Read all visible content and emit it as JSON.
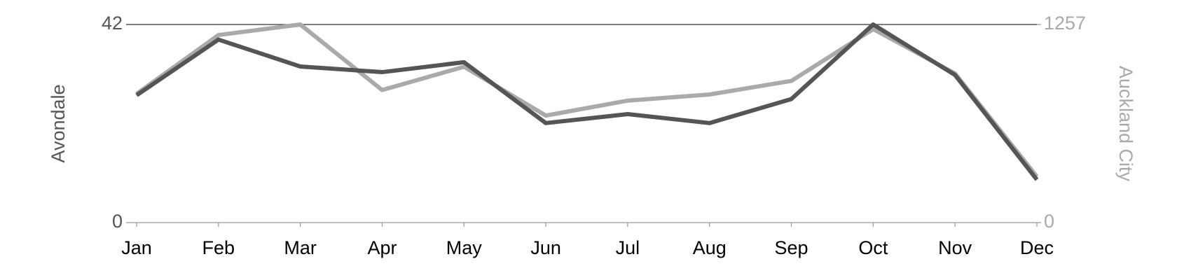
{
  "chart_data": {
    "type": "line",
    "categories": [
      "Jan",
      "Feb",
      "Mar",
      "Apr",
      "May",
      "Jun",
      "Jul",
      "Aug",
      "Sep",
      "Oct",
      "Nov",
      "Dec"
    ],
    "series": [
      {
        "name": "Avondale",
        "color": "#555555",
        "values": [
          27.0,
          38.8,
          33.1,
          31.9,
          34.0,
          21.1,
          23.0,
          21.1,
          26.2,
          42,
          31.3,
          9.1
        ]
      },
      {
        "name": "Auckland City",
        "color": "#aaaaaa",
        "axis": "y2",
        "values": [
          817,
          1190,
          1257,
          841,
          989,
          679,
          774,
          813,
          899,
          1228,
          946,
          292
        ]
      }
    ],
    "ylim": [
      0,
      42
    ],
    "yticks": [
      0,
      42
    ],
    "y2lim": [
      0,
      1257
    ],
    "y2ticks": [
      0,
      1257
    ],
    "grid": true
  }
}
